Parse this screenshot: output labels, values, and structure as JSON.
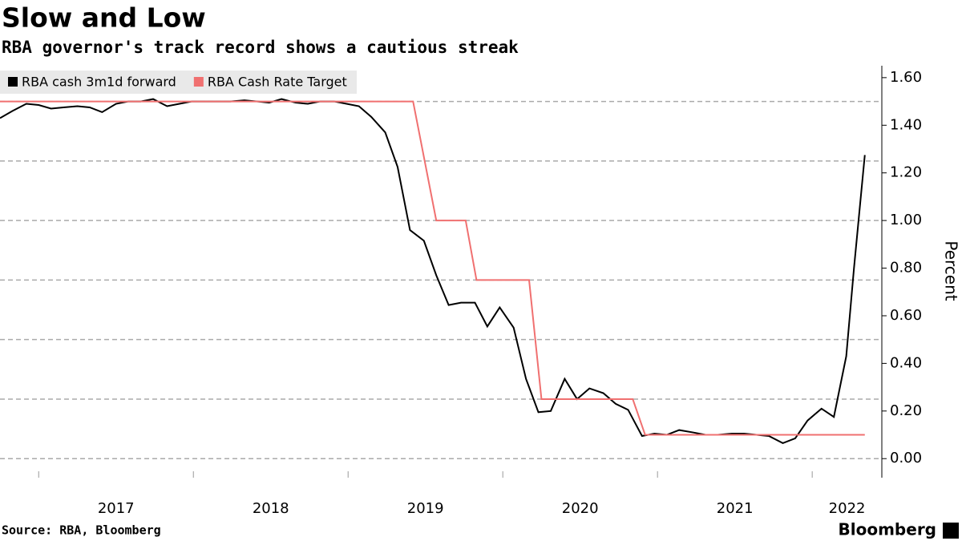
{
  "chart_data": {
    "type": "line",
    "title": "Slow and Low",
    "subtitle": "RBA governor's track record shows a cautious streak",
    "y_label": "Percent",
    "source": "Source: RBA, Bloomberg",
    "brand": "Bloomberg",
    "xlim": [
      2016.75,
      2022.45
    ],
    "xticks": [
      2017,
      2018,
      2019,
      2020,
      2021,
      2022
    ],
    "ylim": [
      -0.08,
      1.65
    ],
    "yticks": [
      {
        "value": 0,
        "label": "0.00"
      },
      {
        "value": 0.2,
        "label": "0.20"
      },
      {
        "value": 0.4,
        "label": "0.40"
      },
      {
        "value": 0.6,
        "label": "0.60"
      },
      {
        "value": 0.8,
        "label": "0.80"
      },
      {
        "value": 1.0,
        "label": "1.00"
      },
      {
        "value": 1.2,
        "label": "1.20"
      },
      {
        "value": 1.4,
        "label": "1.40"
      },
      {
        "value": 1.6,
        "label": "1.60"
      }
    ],
    "grid_values": [
      0,
      0.25,
      0.5,
      0.75,
      1.0,
      1.25,
      1.5
    ],
    "legend": "top-left",
    "series": [
      {
        "name": "RBA cash 3m1d forward",
        "color": "#000000",
        "x": [
          2016.75,
          2016.83,
          2016.92,
          2017.0,
          2017.08,
          2017.16,
          2017.25,
          2017.33,
          2017.41,
          2017.5,
          2017.58,
          2017.66,
          2017.74,
          2017.83,
          2017.91,
          2017.99,
          2018.08,
          2018.16,
          2018.24,
          2018.33,
          2018.41,
          2018.49,
          2018.57,
          2018.66,
          2018.74,
          2018.82,
          2018.91,
          2018.99,
          2019.07,
          2019.15,
          2019.24,
          2019.32,
          2019.4,
          2019.49,
          2019.57,
          2019.65,
          2019.73,
          2019.82,
          2019.9,
          2019.98,
          2020.07,
          2020.15,
          2020.23,
          2020.31,
          2020.4,
          2020.48,
          2020.56,
          2020.65,
          2020.73,
          2020.81,
          2020.9,
          2020.98,
          2021.06,
          2021.14,
          2021.23,
          2021.31,
          2021.39,
          2021.48,
          2021.56,
          2021.64,
          2021.72,
          2021.81,
          2021.89,
          2021.97,
          2022.06,
          2022.14,
          2022.22,
          2022.27,
          2022.34
        ],
        "values": [
          1.43,
          1.46,
          1.49,
          1.485,
          1.47,
          1.475,
          1.48,
          1.475,
          1.455,
          1.49,
          1.5,
          1.5,
          1.51,
          1.48,
          1.49,
          1.5,
          1.5,
          1.5,
          1.5,
          1.505,
          1.5,
          1.495,
          1.51,
          1.495,
          1.49,
          1.5,
          1.5,
          1.49,
          1.48,
          1.435,
          1.37,
          1.225,
          0.96,
          0.915,
          0.77,
          0.645,
          0.655,
          0.655,
          0.555,
          0.635,
          0.55,
          0.335,
          0.195,
          0.2,
          0.335,
          0.25,
          0.295,
          0.275,
          0.23,
          0.205,
          0.095,
          0.105,
          0.1,
          0.12,
          0.11,
          0.1,
          0.1,
          0.105,
          0.105,
          0.1,
          0.095,
          0.065,
          0.085,
          0.16,
          0.21,
          0.175,
          0.43,
          0.8,
          1.275
        ]
      },
      {
        "name": "RBA Cash Rate Target",
        "color": "#f07070",
        "x": [
          2016.75,
          2019.42,
          2019.57,
          2019.76,
          2019.83,
          2020.17,
          2020.25,
          2020.84,
          2020.92,
          2022.34
        ],
        "values": [
          1.5,
          1.5,
          1.0,
          1.0,
          0.75,
          0.75,
          0.25,
          0.25,
          0.1,
          0.1
        ]
      }
    ]
  }
}
